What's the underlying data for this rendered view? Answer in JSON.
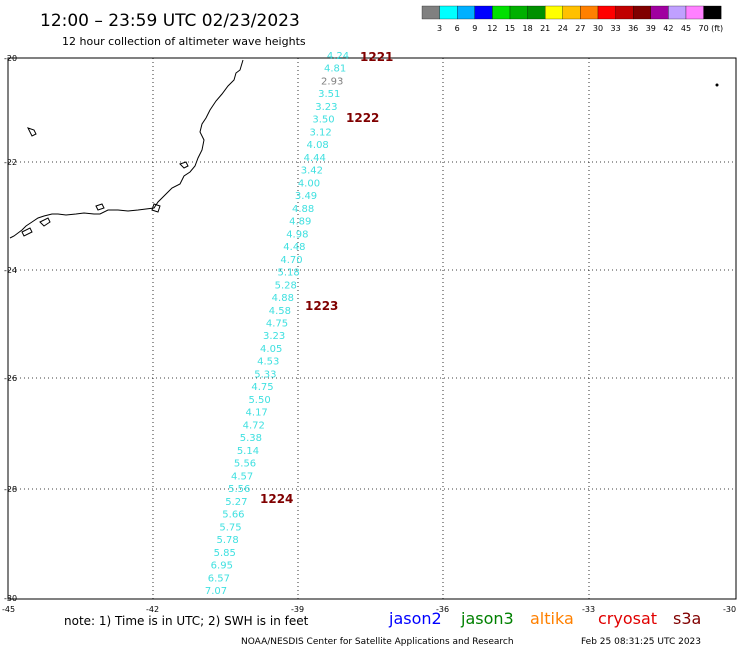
{
  "header": {
    "title": "12:00 – 23:59 UTC 02/23/2023",
    "subtitle": "12 hour collection of altimeter wave heights"
  },
  "colorbar": {
    "unit": "(ft)",
    "labels": [
      "3",
      "6",
      "9",
      "12",
      "15",
      "18",
      "21",
      "24",
      "27",
      "30",
      "33",
      "36",
      "39",
      "42",
      "45",
      "70"
    ],
    "colors": [
      "#808080",
      "#00ffff",
      "#00b0ff",
      "#0000ff",
      "#00e000",
      "#00b000",
      "#009000",
      "#ffff00",
      "#ffc000",
      "#ff8000",
      "#ff0000",
      "#c00000",
      "#800000",
      "#a000a0",
      "#c0a0ff",
      "#ff80ff",
      "#000000"
    ]
  },
  "axes": {
    "lon_ticks": [
      "-45",
      "-42",
      "-39",
      "-36",
      "-33",
      "-30"
    ],
    "lat_ticks": [
      "-20",
      "-22",
      "-24",
      "-26",
      "-28",
      "-30"
    ]
  },
  "track": {
    "points": [
      {
        "value": "4.24",
        "color": "#40e0e0"
      },
      {
        "value": "4.81",
        "color": "#40e0e0"
      },
      {
        "value": "2.93",
        "color": "#808080"
      },
      {
        "value": "3.51",
        "color": "#40e0e0"
      },
      {
        "value": "3.23",
        "color": "#40e0e0"
      },
      {
        "value": "3.50",
        "color": "#40e0e0"
      },
      {
        "value": "3.12",
        "color": "#40e0e0"
      },
      {
        "value": "4.08",
        "color": "#40e0e0"
      },
      {
        "value": "4.44",
        "color": "#40e0e0"
      },
      {
        "value": "3.42",
        "color": "#40e0e0"
      },
      {
        "value": "4.00",
        "color": "#40e0e0"
      },
      {
        "value": "3.49",
        "color": "#40e0e0"
      },
      {
        "value": "4.88",
        "color": "#40e0e0"
      },
      {
        "value": "4.89",
        "color": "#40e0e0"
      },
      {
        "value": "4.98",
        "color": "#40e0e0"
      },
      {
        "value": "4.48",
        "color": "#40e0e0"
      },
      {
        "value": "4.70",
        "color": "#40e0e0"
      },
      {
        "value": "5.18",
        "color": "#40e0e0"
      },
      {
        "value": "5.28",
        "color": "#40e0e0"
      },
      {
        "value": "4.88",
        "color": "#40e0e0"
      },
      {
        "value": "4.58",
        "color": "#40e0e0"
      },
      {
        "value": "4.75",
        "color": "#40e0e0"
      },
      {
        "value": "3.23",
        "color": "#40e0e0"
      },
      {
        "value": "4.05",
        "color": "#40e0e0"
      },
      {
        "value": "4.53",
        "color": "#40e0e0"
      },
      {
        "value": "5.33",
        "color": "#40e0e0"
      },
      {
        "value": "4.75",
        "color": "#40e0e0"
      },
      {
        "value": "5.50",
        "color": "#40e0e0"
      },
      {
        "value": "4.17",
        "color": "#40e0e0"
      },
      {
        "value": "4.72",
        "color": "#40e0e0"
      },
      {
        "value": "5.38",
        "color": "#40e0e0"
      },
      {
        "value": "5.14",
        "color": "#40e0e0"
      },
      {
        "value": "5.56",
        "color": "#40e0e0"
      },
      {
        "value": "4.57",
        "color": "#40e0e0"
      },
      {
        "value": "5.56",
        "color": "#40e0e0"
      },
      {
        "value": "5.27",
        "color": "#40e0e0"
      },
      {
        "value": "5.66",
        "color": "#40e0e0"
      },
      {
        "value": "5.75",
        "color": "#40e0e0"
      },
      {
        "value": "5.78",
        "color": "#40e0e0"
      },
      {
        "value": "5.85",
        "color": "#40e0e0"
      },
      {
        "value": "6.95",
        "color": "#40e0e0"
      },
      {
        "value": "6.57",
        "color": "#40e0e0"
      },
      {
        "value": "7.07",
        "color": "#40e0e0"
      }
    ],
    "time_labels": [
      "1221",
      "1222",
      "1223",
      "1224"
    ],
    "time_color": "#800000"
  },
  "footer": {
    "note": "note: 1) Time is in UTC; 2) SWH is in feet",
    "satellites": [
      {
        "name": "jason2",
        "color": "#0000ff"
      },
      {
        "name": "jason3",
        "color": "#008000"
      },
      {
        "name": "altika",
        "color": "#ff8000"
      },
      {
        "name": "cryosat",
        "color": "#e00000"
      },
      {
        "name": "s3a",
        "color": "#800000"
      }
    ],
    "credit": "NOAA/NESDIS Center for Satellite Applications and Research",
    "timestamp": "Feb 25 08:31:25 UTC 2023"
  }
}
